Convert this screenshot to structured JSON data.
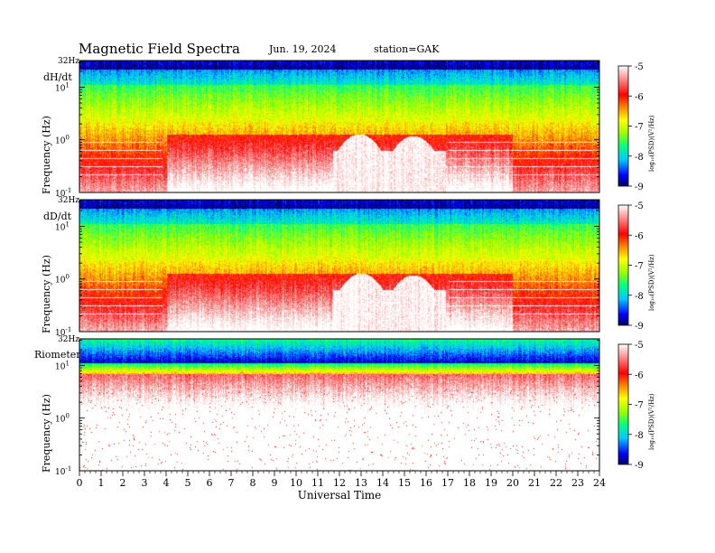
{
  "header": {
    "title": "Magnetic  Field  Spectra",
    "date": "Jun. 19, 2024",
    "station": "station=GAK"
  },
  "colors": {
    "colorbar_stops": [
      "#000060",
      "#0000ff",
      "#00c8ff",
      "#00ff80",
      "#9aff00",
      "#ffff00",
      "#ff8000",
      "#ff0000",
      "#ff8080",
      "#ffffff"
    ]
  },
  "chart_data": [
    {
      "type": "heatmap",
      "panel_label": "dH/dt",
      "top_label": "32Hz",
      "ylabel": "Frequency  (Hz)",
      "y_scale": "log",
      "y_ticks": [
        {
          "base": "10",
          "exp": "1",
          "value": 10
        },
        {
          "base": "10",
          "exp": "0",
          "value": 1
        },
        {
          "base": "10",
          "exp": "-1",
          "value": 0.1
        }
      ],
      "ylim": [
        0.1,
        32
      ],
      "colorbar": {
        "label": "log₁₀(PSD)(V²/Hz)",
        "ticks": [
          "-5",
          "-6",
          "-7",
          "-8",
          "-9"
        ],
        "range": [
          -9,
          -5
        ]
      },
      "gap_hours": [
        11.7,
        16.9
      ],
      "gap_peaks": [
        {
          "hour": 12.9,
          "freq": 1.3
        },
        {
          "hour": 15.4,
          "freq": 1.2
        }
      ]
    },
    {
      "type": "heatmap",
      "panel_label": "dD/dt",
      "top_label": "32Hz",
      "ylabel": "Frequency  (Hz)",
      "y_scale": "log",
      "y_ticks": [
        {
          "base": "10",
          "exp": "1",
          "value": 10
        },
        {
          "base": "10",
          "exp": "0",
          "value": 1
        },
        {
          "base": "10",
          "exp": "-1",
          "value": 0.1
        }
      ],
      "ylim": [
        0.1,
        32
      ],
      "colorbar": {
        "label": "log₁₀(PSD)(V²/Hz)",
        "ticks": [
          "-5",
          "-6",
          "-7",
          "-8",
          "-9"
        ],
        "range": [
          -9,
          -5
        ]
      },
      "gap_hours": [
        11.7,
        16.9
      ],
      "gap_peaks": [
        {
          "hour": 13.0,
          "freq": 1.3
        },
        {
          "hour": 15.4,
          "freq": 1.2
        }
      ]
    },
    {
      "type": "heatmap",
      "panel_label": "Riometer",
      "top_label": "32Hz",
      "ylabel": "Frequency  (Hz)",
      "y_scale": "log",
      "y_ticks": [
        {
          "base": "10",
          "exp": "1",
          "value": 10
        },
        {
          "base": "10",
          "exp": "0",
          "value": 1
        },
        {
          "base": "10",
          "exp": "-1",
          "value": 0.1
        }
      ],
      "ylim": [
        0.1,
        32
      ],
      "colorbar": {
        "label": "log₁₀(PSD)(V²/Hz)",
        "ticks": [
          "-5",
          "-6",
          "-7",
          "-8",
          "-9"
        ],
        "range": [
          -9,
          -5
        ]
      }
    }
  ],
  "x_axis": {
    "label": "Universal  Time",
    "ticks": [
      "0",
      "1",
      "2",
      "3",
      "4",
      "5",
      "6",
      "7",
      "8",
      "9",
      "10",
      "11",
      "12",
      "13",
      "14",
      "15",
      "16",
      "17",
      "18",
      "19",
      "20",
      "21",
      "22",
      "23",
      "24"
    ],
    "range": [
      0,
      24
    ]
  }
}
